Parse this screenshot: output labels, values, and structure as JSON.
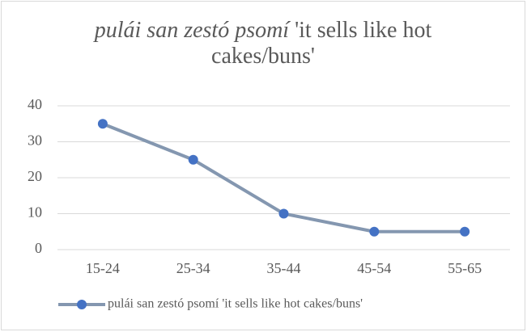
{
  "chart_data": {
    "type": "line",
    "title": {
      "italic": "pulái san zestó psomí",
      "plain": "'it sells like hot cakes/buns'"
    },
    "categories": [
      "15-24",
      "25-34",
      "35-44",
      "45-54",
      "55-65"
    ],
    "series": [
      {
        "name": "pulái san zestó psomí 'it sells like hot cakes/buns'",
        "color": "#4472c4",
        "line_color": "#8497b0",
        "values": [
          35,
          25,
          10,
          5,
          5
        ]
      }
    ],
    "ylim": [
      0,
      40
    ],
    "yticks": [
      0,
      10,
      20,
      30,
      40
    ],
    "grid": true,
    "legend": "bottom"
  }
}
